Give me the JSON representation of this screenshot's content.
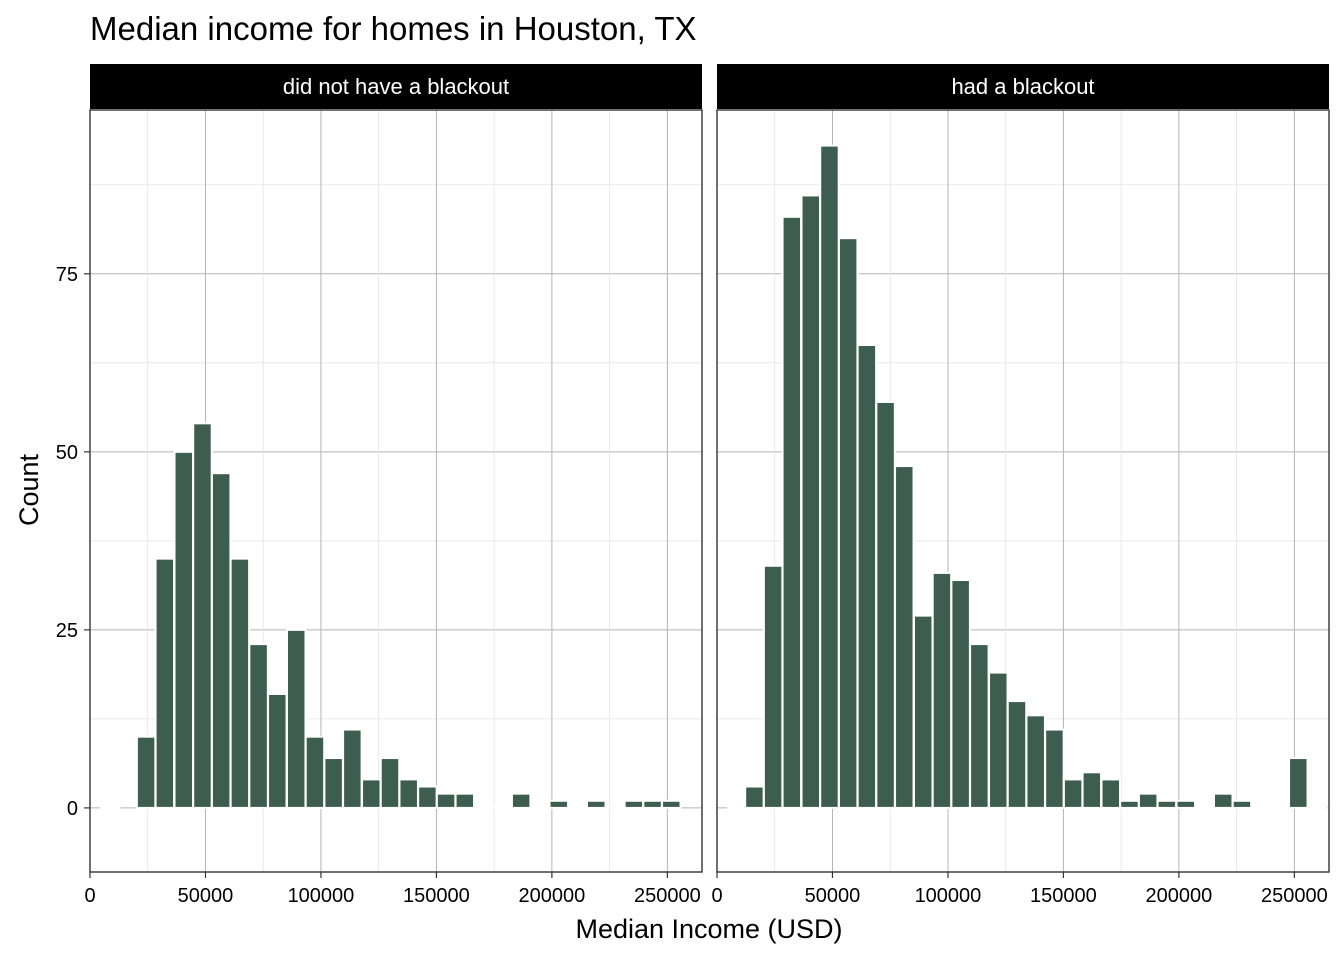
{
  "chart_data": {
    "type": "bar",
    "title": "Median income for homes in Houston, TX",
    "xlabel": "Median Income (USD)",
    "ylabel": "Count",
    "xlim": [
      0,
      265000
    ],
    "ylim": [
      -9,
      98
    ],
    "x_ticks": [
      0,
      50000,
      100000,
      150000,
      200000,
      250000
    ],
    "y_ticks": [
      0,
      25,
      50,
      75
    ],
    "x_tick_labels": [
      "0",
      "50000",
      "100000",
      "150000",
      "200000",
      "250000"
    ],
    "y_tick_labels": [
      "0",
      "25",
      "50",
      "75"
    ],
    "bin_width": 8000,
    "grid": true,
    "bar_color": "#3d5d50",
    "facets": [
      {
        "label": "did not have a blackout",
        "bins": [
          {
            "x": 8800,
            "count": 0
          },
          {
            "x": 24300,
            "count": 10
          },
          {
            "x": 32400,
            "count": 35
          },
          {
            "x": 40600,
            "count": 50
          },
          {
            "x": 48700,
            "count": 54
          },
          {
            "x": 56800,
            "count": 47
          },
          {
            "x": 64900,
            "count": 35
          },
          {
            "x": 73000,
            "count": 23
          },
          {
            "x": 81100,
            "count": 16
          },
          {
            "x": 89300,
            "count": 25
          },
          {
            "x": 97400,
            "count": 10
          },
          {
            "x": 105500,
            "count": 7
          },
          {
            "x": 113600,
            "count": 11
          },
          {
            "x": 121800,
            "count": 4
          },
          {
            "x": 129900,
            "count": 7
          },
          {
            "x": 138000,
            "count": 4
          },
          {
            "x": 146100,
            "count": 3
          },
          {
            "x": 154200,
            "count": 2
          },
          {
            "x": 162300,
            "count": 2
          },
          {
            "x": 170500,
            "count": 0
          },
          {
            "x": 178600,
            "count": 0
          },
          {
            "x": 186700,
            "count": 2
          },
          {
            "x": 194800,
            "count": 0
          },
          {
            "x": 203000,
            "count": 1
          },
          {
            "x": 211100,
            "count": 0
          },
          {
            "x": 219200,
            "count": 1
          },
          {
            "x": 227300,
            "count": 0
          },
          {
            "x": 235500,
            "count": 1
          },
          {
            "x": 243600,
            "count": 1
          },
          {
            "x": 251700,
            "count": 1
          }
        ]
      },
      {
        "label": "had a blackout",
        "bins": [
          {
            "x": 8800,
            "count": 0
          },
          {
            "x": 16200,
            "count": 3
          },
          {
            "x": 24300,
            "count": 34
          },
          {
            "x": 32400,
            "count": 83
          },
          {
            "x": 40600,
            "count": 86
          },
          {
            "x": 48700,
            "count": 93
          },
          {
            "x": 56800,
            "count": 80
          },
          {
            "x": 64900,
            "count": 65
          },
          {
            "x": 73000,
            "count": 57
          },
          {
            "x": 81100,
            "count": 48
          },
          {
            "x": 89300,
            "count": 27
          },
          {
            "x": 97400,
            "count": 33
          },
          {
            "x": 105500,
            "count": 32
          },
          {
            "x": 113600,
            "count": 23
          },
          {
            "x": 121800,
            "count": 19
          },
          {
            "x": 129900,
            "count": 15
          },
          {
            "x": 138000,
            "count": 13
          },
          {
            "x": 146100,
            "count": 11
          },
          {
            "x": 154200,
            "count": 4
          },
          {
            "x": 162300,
            "count": 5
          },
          {
            "x": 170500,
            "count": 4
          },
          {
            "x": 178600,
            "count": 1
          },
          {
            "x": 186700,
            "count": 2
          },
          {
            "x": 194800,
            "count": 1
          },
          {
            "x": 203000,
            "count": 1
          },
          {
            "x": 211100,
            "count": 0
          },
          {
            "x": 219200,
            "count": 2
          },
          {
            "x": 227300,
            "count": 1
          },
          {
            "x": 235500,
            "count": 0
          },
          {
            "x": 243600,
            "count": 0
          },
          {
            "x": 251700,
            "count": 7
          },
          {
            "x": 259800,
            "count": 0
          }
        ]
      }
    ]
  }
}
